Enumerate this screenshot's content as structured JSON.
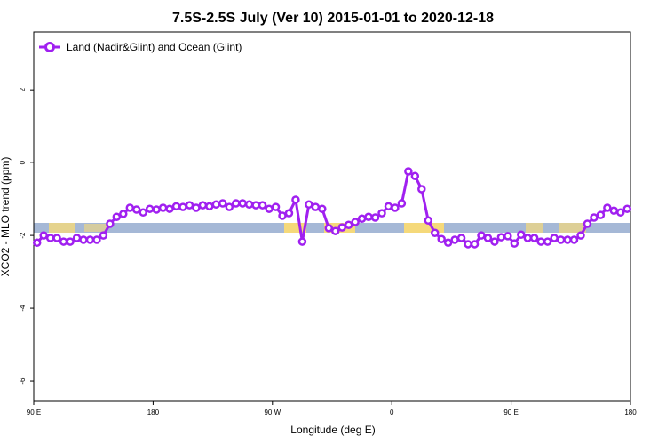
{
  "chart_data": {
    "type": "line",
    "title": "7.5S-2.5S July (Ver 10)   2015-01-01 to 2020-12-18",
    "xlabel": "Longitude (deg E)",
    "ylabel": "XCO2 - MLO trend (ppm)",
    "xlim": [
      90,
      540
    ],
    "ylim": [
      -6.56,
      3.59
    ],
    "xticks": [
      {
        "value": 90,
        "label": "90 E"
      },
      {
        "value": 180,
        "label": "180"
      },
      {
        "value": 270,
        "label": "90 W"
      },
      {
        "value": 360,
        "label": "0"
      },
      {
        "value": 450,
        "label": "90 E"
      },
      {
        "value": 540,
        "label": "180"
      }
    ],
    "yticks": [
      -6,
      -4,
      -2,
      0,
      2
    ],
    "legend": "top-left",
    "x": [
      92.5,
      97.5,
      102.5,
      107.5,
      112.5,
      117.5,
      122.5,
      127.5,
      132.5,
      137.5,
      142.5,
      147.5,
      152.5,
      157.5,
      162.5,
      167.5,
      172.5,
      177.5,
      182.5,
      187.5,
      192.5,
      197.5,
      202.5,
      207.5,
      212.5,
      217.5,
      222.5,
      227.5,
      232.5,
      237.5,
      242.5,
      247.5,
      252.5,
      257.5,
      262.5,
      267.5,
      272.5,
      277.5,
      282.5,
      287.5,
      292.5,
      297.5,
      302.5,
      307.5,
      312.5,
      317.5,
      322.5,
      327.5,
      332.5,
      337.5,
      342.5,
      347.5,
      352.5,
      357.5,
      362.5,
      367.5,
      372.5,
      377.5,
      382.5,
      387.5,
      392.5,
      397.5,
      402.5,
      407.5,
      412.5,
      417.5,
      422.5,
      427.5,
      432.5,
      437.5,
      442.5,
      447.5,
      452.5,
      457.5,
      462.5,
      467.5,
      472.5,
      477.5,
      482.5,
      487.5,
      492.5,
      497.5,
      502.5,
      507.5,
      512.5,
      517.5,
      522.5,
      527.5,
      532.5,
      537.5
    ],
    "series": [
      {
        "name": "Land (Nadir&Glint) and Ocean (Glint)",
        "color": "#a020f0",
        "values": [
          -2.2,
          -2.0,
          -2.07,
          -2.07,
          -2.17,
          -2.17,
          -2.07,
          -2.12,
          -2.12,
          -2.12,
          -2.0,
          -1.68,
          -1.49,
          -1.41,
          -1.24,
          -1.29,
          -1.37,
          -1.27,
          -1.29,
          -1.24,
          -1.27,
          -1.2,
          -1.22,
          -1.17,
          -1.24,
          -1.17,
          -1.2,
          -1.15,
          -1.12,
          -1.22,
          -1.12,
          -1.12,
          -1.15,
          -1.17,
          -1.17,
          -1.27,
          -1.22,
          -1.46,
          -1.39,
          -1.02,
          -2.17,
          -1.15,
          -1.22,
          -1.27,
          -1.8,
          -1.88,
          -1.78,
          -1.71,
          -1.63,
          -1.54,
          -1.49,
          -1.51,
          -1.39,
          -1.2,
          -1.24,
          -1.12,
          -0.24,
          -0.37,
          -0.73,
          -1.59,
          -1.93,
          -2.1,
          -2.2,
          -2.12,
          -2.07,
          -2.24,
          -2.24,
          -2.0,
          -2.07,
          -2.17,
          -2.05,
          -2.02,
          -2.22,
          -1.98,
          -2.07,
          -2.07,
          -2.17,
          -2.17,
          -2.07,
          -2.12,
          -2.12,
          -2.12,
          -2.0,
          -1.68,
          -1.51,
          -1.44,
          -1.24,
          -1.32,
          -1.37,
          -1.27
        ]
      }
    ]
  }
}
